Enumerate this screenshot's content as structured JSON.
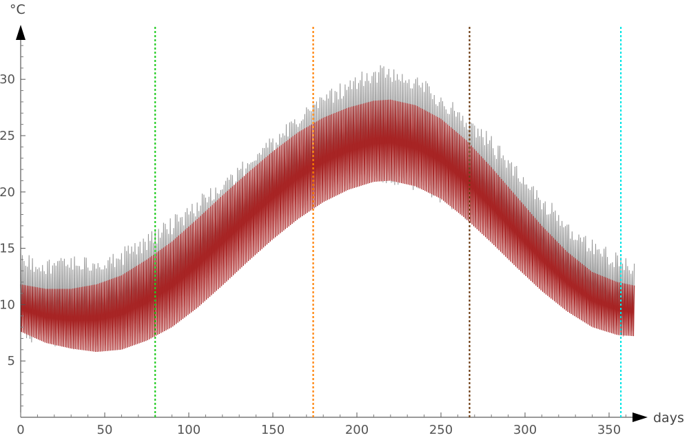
{
  "chart_data": {
    "type": "line",
    "title": "",
    "xlabel": "days",
    "ylabel": "°C",
    "xlim": [
      0,
      365
    ],
    "ylim": [
      0,
      34
    ],
    "x_ticks": [
      0,
      50,
      100,
      150,
      200,
      250,
      300,
      350
    ],
    "x_tick_labels": [
      "0",
      "50",
      "100",
      "150",
      "200",
      "250",
      "300",
      "350"
    ],
    "y_ticks": [
      5,
      10,
      15,
      20,
      25,
      30
    ],
    "y_tick_labels": [
      "5",
      "10",
      "15",
      "20",
      "25",
      "30"
    ],
    "grid": false,
    "legend": "none",
    "series": [
      {
        "color": "#8c8c8c",
        "style": "oscillating band (daily min/max)",
        "x": [
          0,
          15,
          30,
          45,
          60,
          75,
          90,
          105,
          120,
          135,
          150,
          165,
          180,
          195,
          210,
          220,
          235,
          250,
          265,
          280,
          295,
          310,
          325,
          340,
          355,
          365
        ],
        "upper": [
          14.5,
          14.3,
          14.4,
          14.5,
          15.0,
          16.3,
          17.8,
          19.5,
          21.3,
          23.2,
          25.0,
          27.2,
          28.8,
          30.2,
          31.2,
          31.4,
          30.5,
          29.0,
          27.2,
          25.0,
          22.6,
          20.0,
          17.6,
          15.8,
          14.6,
          14.2
        ],
        "lower": [
          6.9,
          6.3,
          6.0,
          6.1,
          6.6,
          7.4,
          8.8,
          10.7,
          12.9,
          15.0,
          16.9,
          18.3,
          19.5,
          20.4,
          20.8,
          20.7,
          20.1,
          19.0,
          17.4,
          15.6,
          13.7,
          11.8,
          10.0,
          8.4,
          7.2,
          7.0
        ]
      },
      {
        "color": "#a61c1c",
        "style": "oscillating band (model)",
        "x": [
          0,
          15,
          30,
          45,
          60,
          75,
          90,
          105,
          120,
          135,
          150,
          165,
          180,
          195,
          210,
          220,
          235,
          250,
          265,
          280,
          295,
          310,
          325,
          340,
          355,
          365
        ],
        "upper": [
          11.8,
          11.4,
          11.4,
          11.8,
          12.6,
          14.0,
          15.6,
          17.6,
          19.7,
          21.7,
          23.6,
          25.3,
          26.6,
          27.5,
          28.1,
          28.2,
          27.7,
          26.5,
          24.6,
          22.2,
          19.6,
          17.0,
          14.7,
          12.9,
          12.0,
          11.7
        ],
        "lower": [
          7.6,
          6.6,
          6.1,
          5.8,
          6.0,
          6.8,
          8.0,
          9.7,
          11.7,
          13.8,
          15.8,
          17.6,
          19.1,
          20.2,
          20.9,
          21.0,
          20.5,
          19.4,
          17.6,
          15.5,
          13.3,
          11.2,
          9.4,
          8.0,
          7.3,
          7.2
        ]
      }
    ],
    "vertical_markers": [
      {
        "x": 80,
        "color": "#22cc22",
        "style": "dotted"
      },
      {
        "x": 174,
        "color": "#ff8000",
        "style": "dotted"
      },
      {
        "x": 267,
        "color": "#6b3a10",
        "style": "dotted"
      },
      {
        "x": 357,
        "color": "#00e5e5",
        "style": "dotted"
      }
    ]
  }
}
